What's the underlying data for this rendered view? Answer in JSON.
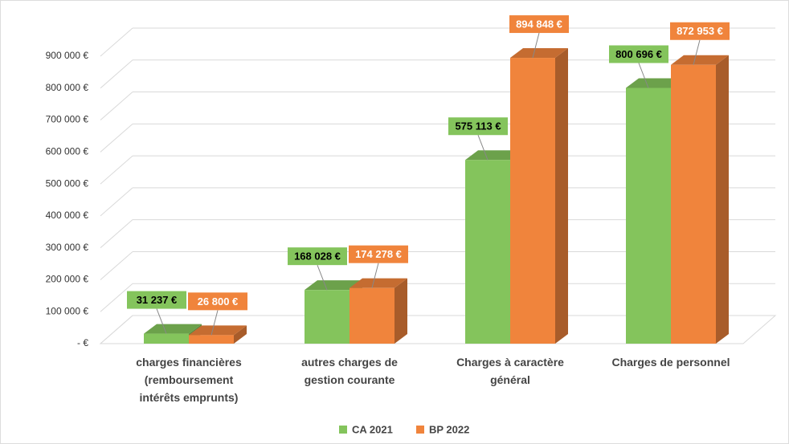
{
  "chart_data": {
    "type": "bar3d",
    "categories": [
      "charges financières\n(remboursement\nintérêts emprunts)",
      "autres charges de\ngestion courante",
      "Charges à caractère\ngénéral",
      "Charges de personnel"
    ],
    "series": [
      {
        "name": "CA 2021",
        "color": "#84c45c",
        "values": [
          31237,
          168028,
          575113,
          800696
        ],
        "value_labels": [
          "31 237 €",
          "168 028 €",
          "575 113 €",
          "800 696 €"
        ]
      },
      {
        "name": "BP 2022",
        "color": "#f0843c",
        "values": [
          26800,
          174278,
          894848,
          872953
        ],
        "value_labels": [
          "26 800 €",
          "174 278 €",
          "894 848 €",
          "872 953 €"
        ]
      }
    ],
    "ylim": [
      0,
      900000
    ],
    "yticks": [
      {
        "value": 0,
        "label": "-  €"
      },
      {
        "value": 100000,
        "label": "100 000 €"
      },
      {
        "value": 200000,
        "label": "200 000 €"
      },
      {
        "value": 300000,
        "label": "300 000 €"
      },
      {
        "value": 400000,
        "label": "400 000 €"
      },
      {
        "value": 500000,
        "label": "500 000 €"
      },
      {
        "value": 600000,
        "label": "600 000 €"
      },
      {
        "value": 700000,
        "label": "700 000 €"
      },
      {
        "value": 800000,
        "label": "800 000 €"
      },
      {
        "value": 900000,
        "label": "900 000 €"
      }
    ],
    "grid": true,
    "legend": "bottom"
  }
}
